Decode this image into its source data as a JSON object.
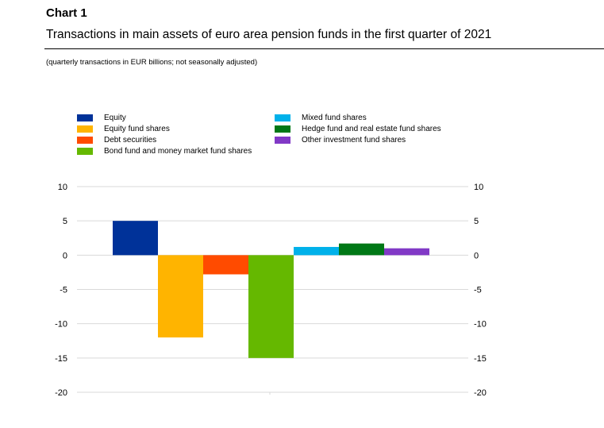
{
  "header": {
    "chart_label": "Chart 1",
    "title": "Transactions in main assets of euro area pension funds in the first quarter of 2021",
    "subtitle": "(quarterly transactions in EUR billions; not seasonally adjusted)"
  },
  "chart_data": {
    "type": "bar",
    "title": "",
    "xlabel": "",
    "ylabel": "",
    "ylim": [
      -20,
      10
    ],
    "yticks": [
      "10",
      "5",
      "0",
      "-5",
      "-10",
      "-15",
      "-20"
    ],
    "grid": true,
    "legend_placement": "top",
    "secondary_y_axis": true,
    "series": [
      {
        "name": "Equity",
        "value": 5,
        "color": "#003299"
      },
      {
        "name": "Equity fund shares",
        "value": -12,
        "color": "#FFB400"
      },
      {
        "name": "Debt securities",
        "value": -2.8,
        "color": "#FF4B00"
      },
      {
        "name": "Bond fund and money market fund shares",
        "value": -15,
        "color": "#65B800"
      },
      {
        "name": "Mixed fund shares",
        "value": 1.2,
        "color": "#00B1EA"
      },
      {
        "name": "Hedge fund and real estate fund shares",
        "value": 1.7,
        "color": "#007816"
      },
      {
        "name": "Other investment fund shares",
        "value": 1.0,
        "color": "#8139C6"
      }
    ]
  }
}
